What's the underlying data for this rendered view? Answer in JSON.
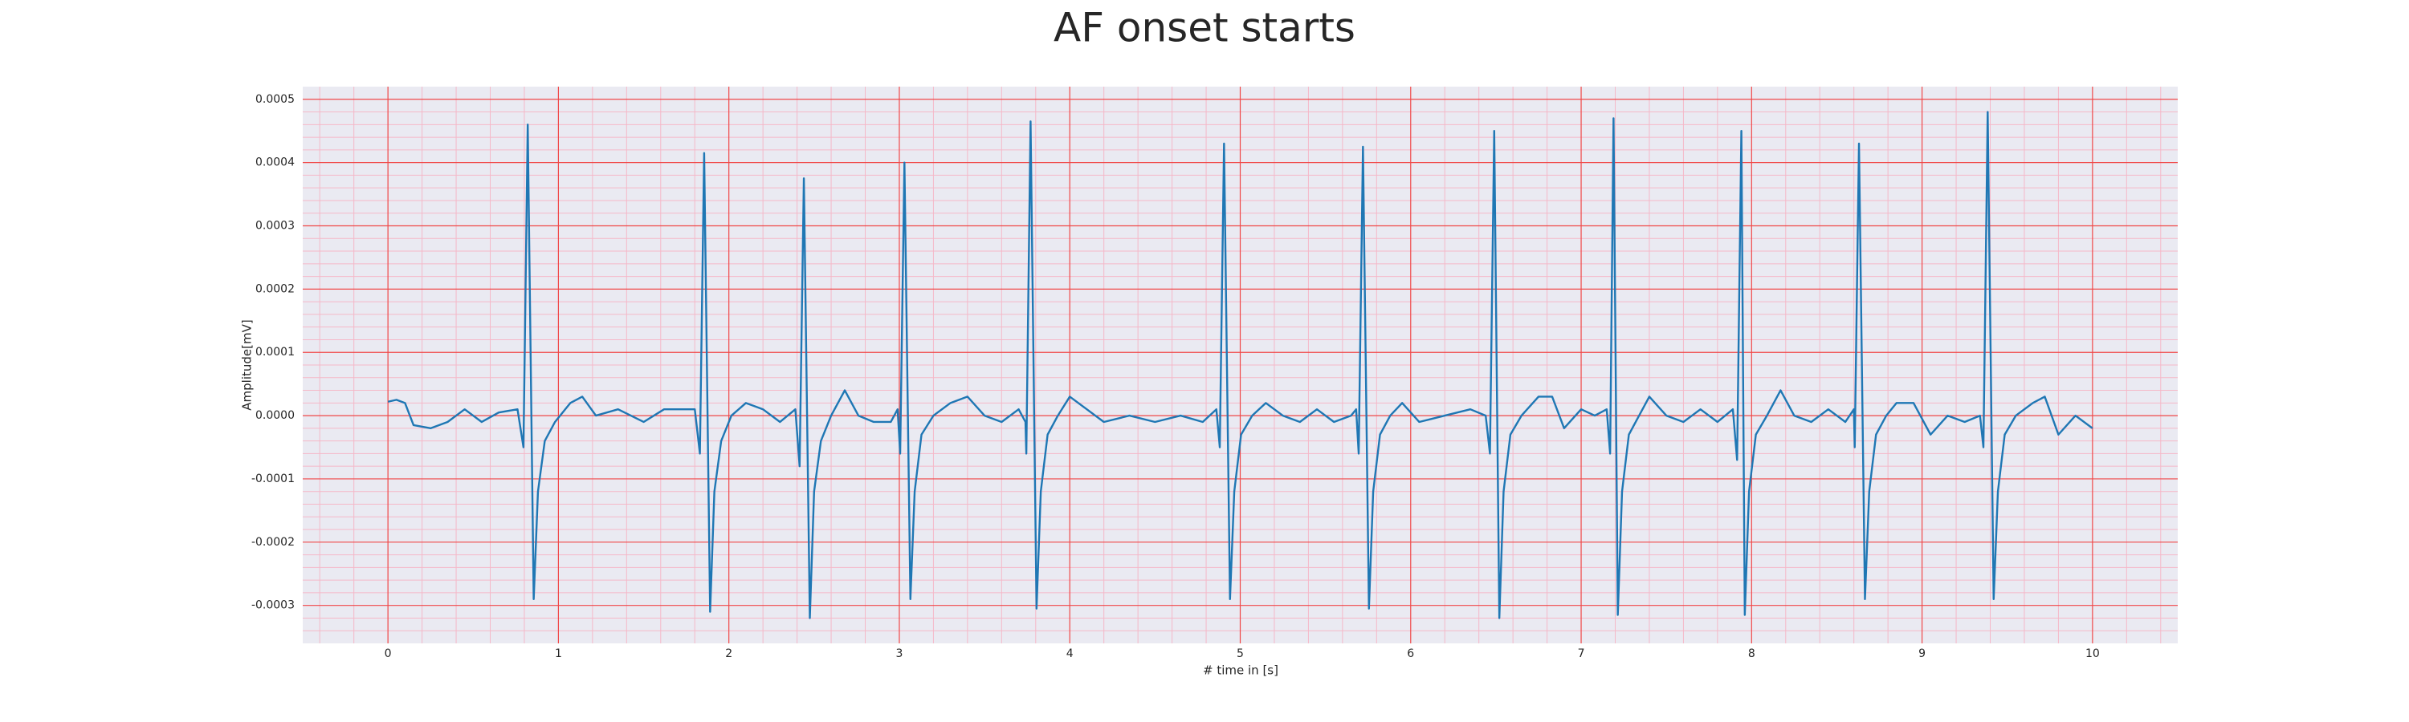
{
  "chart_data": {
    "type": "line",
    "title": "AF onset starts",
    "xlabel": "# time in [s]",
    "ylabel": "Amplitude[mV]",
    "color": "#1f77b4",
    "grid": true,
    "minor_grid": true,
    "xlim": [
      -0.5,
      10.5
    ],
    "ylim": [
      -0.00036,
      0.00052
    ],
    "xticks": [
      0,
      1,
      2,
      3,
      4,
      5,
      6,
      7,
      8,
      9,
      10
    ],
    "yticks": [
      {
        "value": -0.0003,
        "label": "-0.0003"
      },
      {
        "value": -0.0002,
        "label": "-0.0002"
      },
      {
        "value": -0.0001,
        "label": "-0.0001"
      },
      {
        "value": 0,
        "label": "0.0000"
      },
      {
        "value": 0.0001,
        "label": "0.0001"
      },
      {
        "value": 0.0002,
        "label": "0.0002"
      },
      {
        "value": 0.0003,
        "label": "0.0003"
      },
      {
        "value": 0.0004,
        "label": "0.0004"
      },
      {
        "value": 0.0005,
        "label": "0.0005"
      }
    ],
    "xminorticks": [
      -0.4,
      -0.2,
      0.2,
      0.4,
      0.6,
      0.8,
      1.2,
      1.4,
      1.6,
      1.8,
      2.2,
      2.4,
      2.6,
      2.8,
      3.2,
      3.4,
      3.6,
      3.8,
      4.2,
      4.4,
      4.6,
      4.8,
      5.2,
      5.4,
      5.6,
      5.8,
      6.2,
      6.4,
      6.6,
      6.8,
      7.2,
      7.4,
      7.6,
      7.8,
      8.2,
      8.4,
      8.6,
      8.8,
      9.2,
      9.4,
      9.6,
      9.8,
      10.2,
      10.4
    ],
    "yminorticks": [
      -0.00034,
      -0.00032,
      -0.00028,
      -0.00026,
      -0.00024,
      -0.00022,
      -0.00018,
      -0.00016,
      -0.00014,
      -0.00012,
      -8e-05,
      -6e-05,
      -4e-05,
      -2e-05,
      2e-05,
      4e-05,
      6e-05,
      8e-05,
      0.00012,
      0.00014,
      0.00016,
      0.00018,
      0.00022,
      0.00024,
      0.00026,
      0.00028,
      0.00032,
      0.00034,
      0.00036,
      0.00038,
      0.00042,
      0.00044,
      0.00046,
      0.00048
    ],
    "x": [
      0,
      0.05,
      0.1,
      0.15,
      0.25,
      0.35,
      0.45,
      0.55,
      0.65,
      0.76,
      0.795,
      0.82,
      0.855,
      0.88,
      0.92,
      0.98,
      1.07,
      1.14,
      1.22,
      1.35,
      1.5,
      1.62,
      1.72,
      1.8,
      1.83,
      1.855,
      1.89,
      1.915,
      1.955,
      2.015,
      2.1,
      2.2,
      2.3,
      2.39,
      2.415,
      2.44,
      2.475,
      2.5,
      2.54,
      2.6,
      2.68,
      2.76,
      2.85,
      2.95,
      2.99,
      3.005,
      3.03,
      3.065,
      3.09,
      3.13,
      3.2,
      3.3,
      3.4,
      3.5,
      3.6,
      3.7,
      3.74,
      3.745,
      3.77,
      3.805,
      3.83,
      3.87,
      3.93,
      4.0,
      4.1,
      4.2,
      4.35,
      4.5,
      4.65,
      4.78,
      4.86,
      4.88,
      4.905,
      4.94,
      4.965,
      5.005,
      5.07,
      5.15,
      5.25,
      5.35,
      5.45,
      5.55,
      5.65,
      5.68,
      5.695,
      5.72,
      5.755,
      5.78,
      5.82,
      5.88,
      5.95,
      6.05,
      6.2,
      6.35,
      6.44,
      6.465,
      6.49,
      6.52,
      6.545,
      6.585,
      6.65,
      6.75,
      6.83,
      6.9,
      7.0,
      7.08,
      7.15,
      7.17,
      7.19,
      7.215,
      7.24,
      7.28,
      7.34,
      7.4,
      7.5,
      7.6,
      7.7,
      7.8,
      7.89,
      7.915,
      7.94,
      7.96,
      7.985,
      8.025,
      8.09,
      8.17,
      8.25,
      8.35,
      8.45,
      8.55,
      8.6,
      8.605,
      8.63,
      8.665,
      8.69,
      8.73,
      8.79,
      8.85,
      8.95,
      9.05,
      9.15,
      9.25,
      9.34,
      9.36,
      9.385,
      9.42,
      9.445,
      9.485,
      9.55,
      9.65,
      9.72,
      9.8,
      9.9,
      10.0
    ],
    "values": [
      2.2e-05,
      2.5e-05,
      2e-05,
      -1.5e-05,
      -2e-05,
      -1e-05,
      1e-05,
      -1e-05,
      5e-06,
      1e-05,
      -5e-05,
      0.00046,
      -0.00029,
      -0.00012,
      -4e-05,
      -1e-05,
      2e-05,
      3e-05,
      0.0,
      1e-05,
      -1e-05,
      1e-05,
      1e-05,
      1e-05,
      -6e-05,
      0.000415,
      -0.00031,
      -0.00012,
      -4e-05,
      0.0,
      2e-05,
      1e-05,
      -1e-05,
      1e-05,
      -8e-05,
      0.000375,
      -0.00032,
      -0.00012,
      -4e-05,
      0.0,
      4e-05,
      0.0,
      -1e-05,
      -1e-05,
      1e-05,
      -6e-05,
      0.0004,
      -0.00029,
      -0.00012,
      -3e-05,
      0.0,
      2e-05,
      3e-05,
      0.0,
      -1e-05,
      1e-05,
      -1e-05,
      -6e-05,
      0.000465,
      -0.000305,
      -0.00012,
      -3e-05,
      0.0,
      3e-05,
      1e-05,
      -1e-05,
      0.0,
      -1e-05,
      0.0,
      -1e-05,
      1e-05,
      -5e-05,
      0.00043,
      -0.00029,
      -0.00012,
      -3e-05,
      0.0,
      2e-05,
      0.0,
      -1e-05,
      1e-05,
      -1e-05,
      0.0,
      1e-05,
      -6e-05,
      0.000425,
      -0.000305,
      -0.00012,
      -3e-05,
      0.0,
      2e-05,
      -1e-05,
      0.0,
      1e-05,
      0.0,
      -6e-05,
      0.00045,
      -0.00032,
      -0.00012,
      -3e-05,
      0.0,
      3e-05,
      3e-05,
      -2e-05,
      1e-05,
      0.0,
      1e-05,
      -6e-05,
      0.00047,
      -0.000315,
      -0.00012,
      -3e-05,
      0.0,
      3e-05,
      0.0,
      -1e-05,
      1e-05,
      -1e-05,
      1e-05,
      -7e-05,
      0.00045,
      -0.000315,
      -0.00012,
      -3e-05,
      0.0,
      4e-05,
      0.0,
      -1e-05,
      1e-05,
      -1e-05,
      1e-05,
      -5e-05,
      0.00043,
      -0.00029,
      -0.00012,
      -3e-05,
      0.0,
      2e-05,
      2e-05,
      -3e-05,
      0.0,
      -1e-05,
      0.0,
      -5e-05,
      0.00048,
      -0.00029,
      -0.00012,
      -3e-05,
      0.0,
      2e-05,
      3e-05,
      -3e-05,
      0.0,
      -2e-05
    ]
  }
}
